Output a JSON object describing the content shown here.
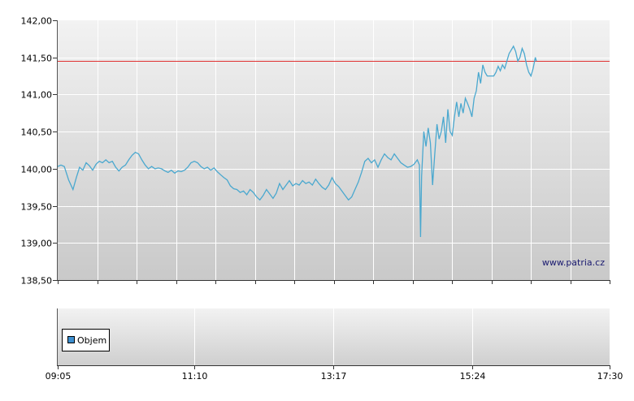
{
  "watermark": "www.patria.cz",
  "colors": {
    "line": "#4aa8cf",
    "reference": "#e03030",
    "legend_swatch": "#3d8fd0",
    "axis": "#333333"
  },
  "chart_data": [
    {
      "type": "line",
      "name": "price",
      "ylim": [
        138.5,
        142.0
      ],
      "y_ticks": [
        138.5,
        139.0,
        139.5,
        140.0,
        140.5,
        141.0,
        141.5,
        142.0
      ],
      "y_tick_labels": [
        "138,50",
        "139,00",
        "139,50",
        "140,00",
        "140,50",
        "141,00",
        "141,50",
        "142,00"
      ],
      "xlim_minutes": [
        545,
        1050
      ],
      "reference_line": 141.45,
      "grid": true,
      "series": [
        {
          "points": [
            [
              545,
              140.03
            ],
            [
              548,
              140.05
            ],
            [
              551,
              140.03
            ],
            [
              555,
              139.85
            ],
            [
              559,
              139.72
            ],
            [
              562,
              139.88
            ],
            [
              565,
              140.02
            ],
            [
              568,
              139.98
            ],
            [
              571,
              140.08
            ],
            [
              574,
              140.04
            ],
            [
              577,
              139.98
            ],
            [
              580,
              140.06
            ],
            [
              583,
              140.1
            ],
            [
              586,
              140.08
            ],
            [
              589,
              140.12
            ],
            [
              592,
              140.08
            ],
            [
              595,
              140.1
            ],
            [
              598,
              140.02
            ],
            [
              601,
              139.97
            ],
            [
              604,
              140.02
            ],
            [
              607,
              140.05
            ],
            [
              610,
              140.12
            ],
            [
              613,
              140.18
            ],
            [
              616,
              140.22
            ],
            [
              619,
              140.2
            ],
            [
              622,
              140.12
            ],
            [
              625,
              140.05
            ],
            [
              628,
              140.0
            ],
            [
              631,
              140.03
            ],
            [
              634,
              140.0
            ],
            [
              637,
              140.01
            ],
            [
              640,
              140.0
            ],
            [
              643,
              139.97
            ],
            [
              646,
              139.95
            ],
            [
              649,
              139.98
            ],
            [
              652,
              139.94
            ],
            [
              655,
              139.97
            ],
            [
              658,
              139.96
            ],
            [
              661,
              139.98
            ],
            [
              664,
              140.02
            ],
            [
              667,
              140.08
            ],
            [
              670,
              140.1
            ],
            [
              673,
              140.08
            ],
            [
              676,
              140.03
            ],
            [
              679,
              140.0
            ],
            [
              682,
              140.02
            ],
            [
              685,
              139.98
            ],
            [
              688,
              140.01
            ],
            [
              691,
              139.96
            ],
            [
              694,
              139.92
            ],
            [
              697,
              139.88
            ],
            [
              700,
              139.85
            ],
            [
              703,
              139.77
            ],
            [
              706,
              139.73
            ],
            [
              709,
              139.72
            ],
            [
              712,
              139.68
            ],
            [
              715,
              139.7
            ],
            [
              718,
              139.65
            ],
            [
              721,
              139.72
            ],
            [
              724,
              139.68
            ],
            [
              727,
              139.62
            ],
            [
              730,
              139.58
            ],
            [
              733,
              139.64
            ],
            [
              736,
              139.72
            ],
            [
              739,
              139.66
            ],
            [
              742,
              139.6
            ],
            [
              745,
              139.67
            ],
            [
              748,
              139.8
            ],
            [
              751,
              139.72
            ],
            [
              754,
              139.78
            ],
            [
              757,
              139.84
            ],
            [
              760,
              139.77
            ],
            [
              763,
              139.8
            ],
            [
              766,
              139.78
            ],
            [
              769,
              139.84
            ],
            [
              772,
              139.8
            ],
            [
              775,
              139.82
            ],
            [
              778,
              139.78
            ],
            [
              781,
              139.86
            ],
            [
              784,
              139.8
            ],
            [
              787,
              139.75
            ],
            [
              790,
              139.72
            ],
            [
              793,
              139.78
            ],
            [
              796,
              139.88
            ],
            [
              799,
              139.8
            ],
            [
              802,
              139.76
            ],
            [
              805,
              139.7
            ],
            [
              808,
              139.64
            ],
            [
              811,
              139.58
            ],
            [
              814,
              139.62
            ],
            [
              817,
              139.72
            ],
            [
              820,
              139.82
            ],
            [
              823,
              139.95
            ],
            [
              826,
              140.1
            ],
            [
              829,
              140.14
            ],
            [
              832,
              140.08
            ],
            [
              835,
              140.12
            ],
            [
              838,
              140.02
            ],
            [
              841,
              140.12
            ],
            [
              844,
              140.2
            ],
            [
              847,
              140.15
            ],
            [
              850,
              140.12
            ],
            [
              853,
              140.2
            ],
            [
              856,
              140.14
            ],
            [
              859,
              140.08
            ],
            [
              862,
              140.05
            ],
            [
              865,
              140.02
            ],
            [
              868,
              140.03
            ],
            [
              871,
              140.06
            ],
            [
              874,
              140.12
            ],
            [
              876,
              140.05
            ],
            [
              877,
              139.08
            ],
            [
              878,
              139.9
            ],
            [
              880,
              140.5
            ],
            [
              882,
              140.3
            ],
            [
              884,
              140.55
            ],
            [
              886,
              140.35
            ],
            [
              888,
              139.78
            ],
            [
              890,
              140.2
            ],
            [
              892,
              140.6
            ],
            [
              894,
              140.4
            ],
            [
              896,
              140.5
            ],
            [
              898,
              140.7
            ],
            [
              900,
              140.35
            ],
            [
              902,
              140.8
            ],
            [
              904,
              140.5
            ],
            [
              906,
              140.45
            ],
            [
              908,
              140.7
            ],
            [
              910,
              140.9
            ],
            [
              912,
              140.7
            ],
            [
              914,
              140.88
            ],
            [
              916,
              140.75
            ],
            [
              918,
              140.95
            ],
            [
              920,
              140.88
            ],
            [
              922,
              140.8
            ],
            [
              924,
              140.7
            ],
            [
              926,
              140.95
            ],
            [
              928,
              141.05
            ],
            [
              930,
              141.3
            ],
            [
              932,
              141.15
            ],
            [
              934,
              141.4
            ],
            [
              936,
              141.3
            ],
            [
              938,
              141.25
            ],
            [
              940,
              141.25
            ],
            [
              942,
              141.25
            ],
            [
              944,
              141.25
            ],
            [
              946,
              141.3
            ],
            [
              948,
              141.38
            ],
            [
              950,
              141.32
            ],
            [
              952,
              141.4
            ],
            [
              954,
              141.35
            ],
            [
              956,
              141.45
            ],
            [
              958,
              141.55
            ],
            [
              960,
              141.6
            ],
            [
              962,
              141.65
            ],
            [
              964,
              141.58
            ],
            [
              966,
              141.45
            ],
            [
              968,
              141.5
            ],
            [
              970,
              141.62
            ],
            [
              972,
              141.55
            ],
            [
              974,
              141.4
            ],
            [
              976,
              141.3
            ],
            [
              978,
              141.25
            ],
            [
              980,
              141.35
            ],
            [
              982,
              141.5
            ],
            [
              983,
              141.45
            ]
          ]
        }
      ]
    },
    {
      "type": "bar",
      "name": "volume",
      "legend": [
        "Objem"
      ],
      "x_ticks_minutes": [
        545,
        670,
        797,
        924,
        1050
      ],
      "x_tick_labels": [
        "09:05",
        "11:10",
        "13:17",
        "15:24",
        "17:30"
      ],
      "series": []
    }
  ]
}
